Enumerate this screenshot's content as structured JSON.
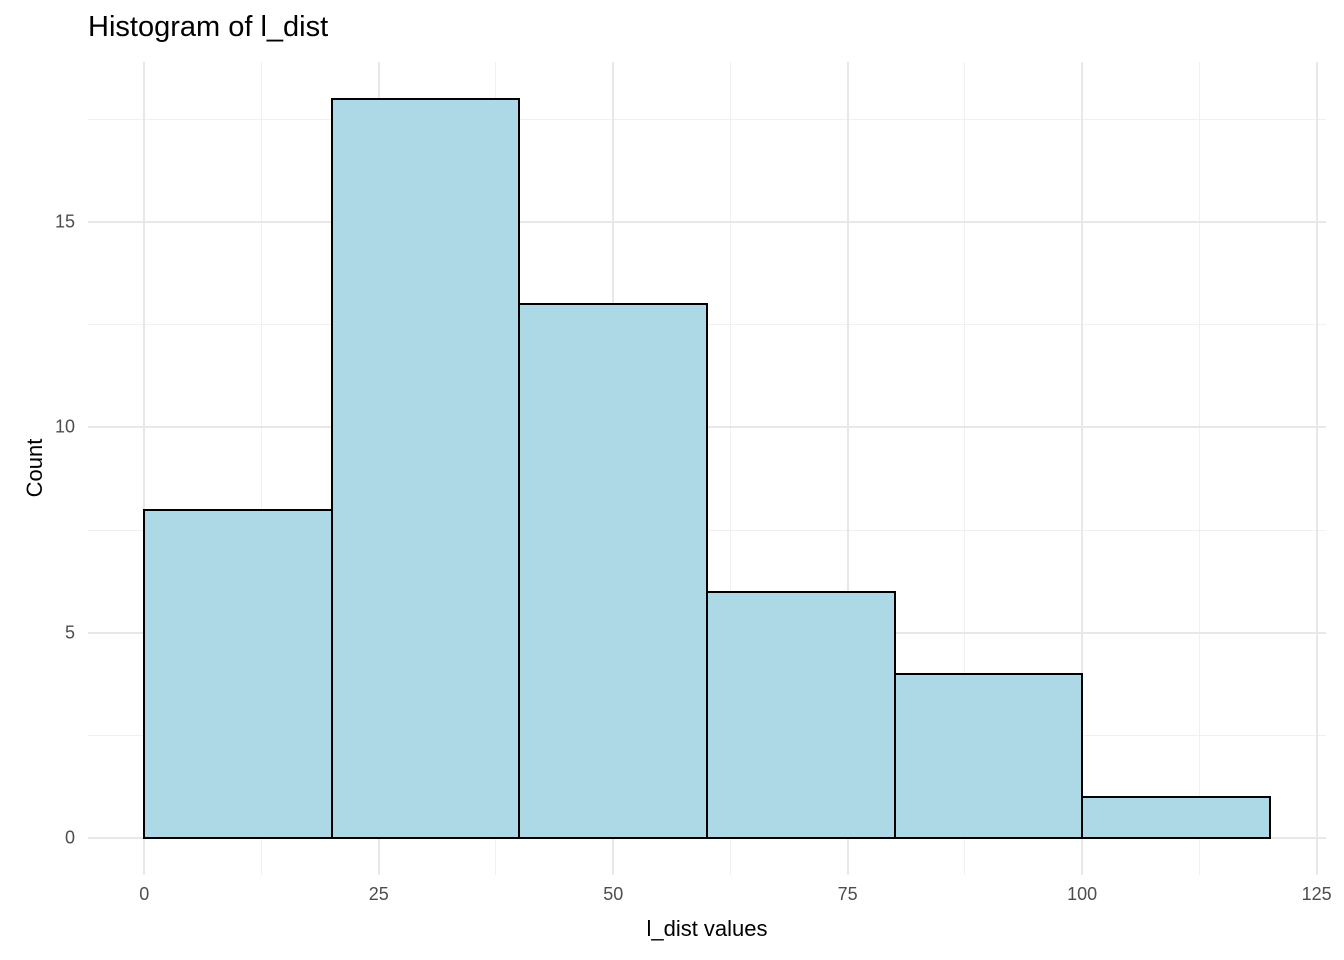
{
  "chart_data": {
    "type": "bar",
    "subtype": "histogram",
    "title": "Histogram of l_dist",
    "xlabel": "l_dist values",
    "ylabel": "Count",
    "bin_edges": [
      0,
      20,
      40,
      60,
      80,
      100,
      120
    ],
    "counts": [
      8,
      18,
      13,
      6,
      4,
      1
    ],
    "x_ticks": [
      0,
      25,
      50,
      75,
      100,
      125
    ],
    "y_ticks": [
      0,
      5,
      10,
      15
    ],
    "x_minor_gridlines": [
      12.5,
      37.5,
      62.5,
      87.5,
      112.5
    ],
    "y_minor_gridlines": [
      2.5,
      7.5,
      12.5,
      17.5
    ],
    "xlim": [
      -6,
      126
    ],
    "ylim": [
      -0.9,
      18.9
    ],
    "grid": true,
    "legend": false,
    "colors": {
      "bar_fill": "#ADD8E6",
      "bar_border": "#000000",
      "grid_major": "#E8E8E8",
      "grid_minor": "#F0F0F0",
      "tick_label": "#4D4D4D",
      "title_text": "#000000"
    }
  }
}
